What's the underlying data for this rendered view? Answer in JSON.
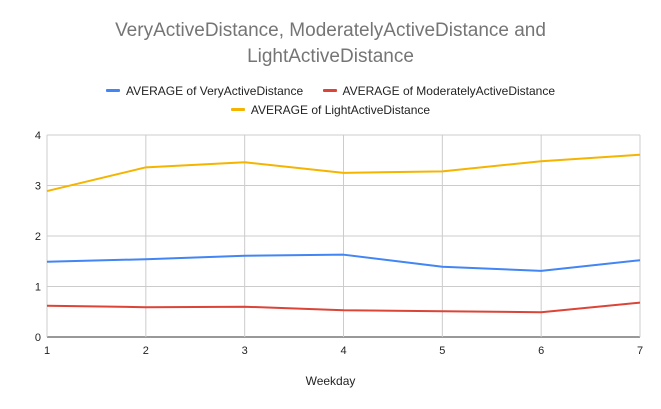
{
  "chart_data": {
    "type": "line",
    "title_line1": "VeryActiveDistance, ModeratelyActiveDistance and",
    "title_line2": "LightActiveDistance",
    "xlabel": "Weekday",
    "ylabel": "",
    "x": [
      1,
      2,
      3,
      4,
      5,
      6,
      7
    ],
    "xlim": [
      1,
      7
    ],
    "ylim": [
      0,
      4
    ],
    "yticks": [
      0,
      1,
      2,
      3,
      4
    ],
    "grid": true,
    "legend_position": "top",
    "series": [
      {
        "name": "AVERAGE of VeryActiveDistance",
        "color": "#4285f4",
        "values": [
          1.49,
          1.54,
          1.61,
          1.63,
          1.39,
          1.31,
          1.52
        ]
      },
      {
        "name": "AVERAGE of ModeratelyActiveDistance",
        "color": "#db4437",
        "values": [
          0.62,
          0.59,
          0.6,
          0.53,
          0.51,
          0.49,
          0.68
        ]
      },
      {
        "name": "AVERAGE of LightActiveDistance",
        "color": "#f4b400",
        "values": [
          2.89,
          3.36,
          3.46,
          3.25,
          3.28,
          3.48,
          3.61
        ]
      }
    ]
  }
}
